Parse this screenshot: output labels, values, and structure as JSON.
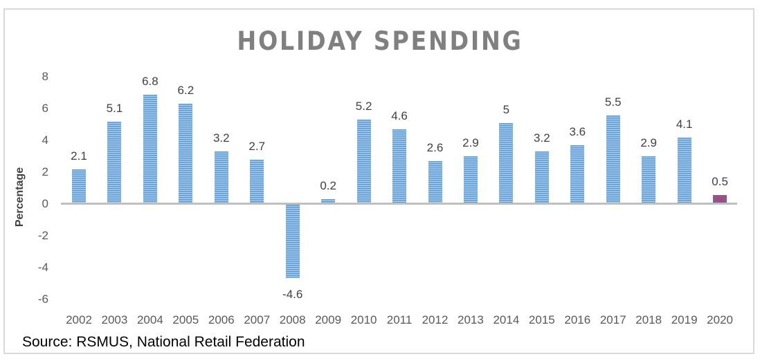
{
  "chart_data": {
    "type": "bar",
    "title": "HOLIDAY SPENDING",
    "xlabel": "",
    "ylabel": "Percentage",
    "ylim": [
      -6,
      8
    ],
    "yticks": [
      8,
      6,
      4,
      2,
      0,
      -2,
      -4,
      -6
    ],
    "grid": false,
    "legend": null,
    "categories": [
      "2002",
      "2003",
      "2004",
      "2005",
      "2006",
      "2007",
      "2008",
      "2009",
      "2010",
      "2011",
      "2012",
      "2013",
      "2014",
      "2015",
      "2016",
      "2017",
      "2018",
      "2019",
      "2020"
    ],
    "values": [
      2.1,
      5.1,
      6.8,
      6.2,
      3.2,
      2.7,
      -4.6,
      0.2,
      5.2,
      4.6,
      2.6,
      2.9,
      5,
      3.2,
      3.6,
      5.5,
      2.9,
      4.1,
      0.5
    ],
    "data_labels": [
      "2.1",
      "5.1",
      "6.8",
      "6.2",
      "3.2",
      "2.7",
      "-4.6",
      "0.2",
      "5.2",
      "4.6",
      "2.6",
      "2.9",
      "5",
      "3.2",
      "3.6",
      "5.5",
      "2.9",
      "4.1",
      "0.5"
    ],
    "colors": {
      "bar_primary": "#5b9bd5",
      "bar_stripe": "#aacbea",
      "bar_highlight": "#8a5a92",
      "highlight_category": "2020",
      "axis": "#bfbfbf",
      "title": "#808080"
    }
  },
  "source": "Source: RSMUS, National Retail Federation"
}
